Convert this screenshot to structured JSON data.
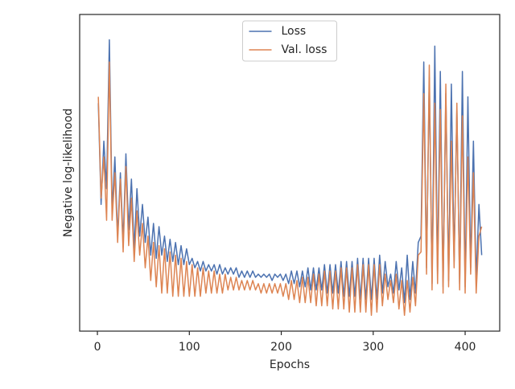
{
  "chart_data": {
    "type": "line",
    "xlabel": "Epochs",
    "ylabel": "Negative log-likelihood",
    "x": [
      1,
      4,
      7,
      10,
      13,
      16,
      19,
      22,
      25,
      28,
      31,
      34,
      37,
      40,
      43,
      46,
      49,
      52,
      55,
      58,
      61,
      64,
      67,
      70,
      73,
      76,
      79,
      82,
      85,
      88,
      91,
      94,
      97,
      100,
      103,
      106,
      109,
      112,
      115,
      118,
      121,
      124,
      127,
      130,
      133,
      136,
      139,
      142,
      145,
      148,
      151,
      154,
      157,
      160,
      163,
      166,
      169,
      172,
      175,
      178,
      181,
      184,
      187,
      190,
      193,
      196,
      199,
      202,
      205,
      208,
      211,
      214,
      217,
      220,
      223,
      226,
      229,
      232,
      235,
      238,
      241,
      244,
      247,
      250,
      253,
      256,
      259,
      262,
      265,
      268,
      271,
      274,
      277,
      280,
      283,
      286,
      289,
      292,
      295,
      298,
      301,
      304,
      307,
      310,
      313,
      316,
      319,
      322,
      325,
      328,
      331,
      334,
      337,
      340,
      343,
      346,
      349,
      352,
      355,
      358,
      361,
      364,
      367,
      370,
      373,
      376,
      379,
      382,
      385,
      388,
      391,
      394,
      397,
      400,
      403,
      406,
      409,
      412,
      415,
      418
    ],
    "series": [
      {
        "name": "Loss",
        "color": "#4c72b0",
        "values": [
          72,
          40,
          60,
          45,
          92,
          38,
          55,
          30,
          50,
          28,
          56,
          32,
          48,
          26,
          45,
          30,
          40,
          28,
          36,
          24,
          34,
          23,
          33,
          24,
          30,
          22,
          29,
          22,
          28,
          21,
          27,
          21,
          26,
          21,
          23,
          20,
          22,
          19,
          22,
          19,
          21,
          19,
          21,
          18,
          21,
          18,
          20,
          18,
          20,
          18,
          20,
          17,
          19,
          17,
          19,
          17,
          19,
          17,
          18,
          17,
          18,
          17,
          18,
          16,
          18,
          17,
          18,
          16,
          18,
          15,
          19,
          15,
          19,
          14,
          19,
          14,
          20,
          13,
          20,
          13,
          20,
          13,
          21,
          12,
          21,
          12,
          21,
          12,
          22,
          11,
          22,
          11,
          22,
          11,
          23,
          10,
          23,
          10,
          23,
          10,
          23,
          10,
          24,
          12,
          22,
          14,
          18,
          12,
          22,
          13,
          20,
          9,
          24,
          10,
          22,
          12,
          28,
          30,
          85,
          20,
          80,
          15,
          90,
          18,
          82,
          14,
          75,
          16,
          78,
          22,
          70,
          15,
          82,
          14,
          74,
          20,
          60,
          16,
          40,
          24
        ]
      },
      {
        "name": "Val. loss",
        "color": "#dd8452",
        "values": [
          74,
          42,
          55,
          35,
          85,
          35,
          50,
          28,
          48,
          25,
          52,
          27,
          42,
          22,
          38,
          24,
          34,
          20,
          30,
          16,
          28,
          14,
          27,
          12,
          26,
          12,
          25,
          11,
          24,
          11,
          23,
          11,
          22,
          11,
          21,
          11,
          20,
          11,
          20,
          12,
          19,
          12,
          19,
          12,
          18,
          12,
          18,
          13,
          17,
          13,
          17,
          13,
          16,
          13,
          16,
          13,
          16,
          13,
          15,
          12,
          15,
          12,
          15,
          12,
          15,
          12,
          15,
          11,
          15,
          10,
          16,
          10,
          16,
          9,
          17,
          9,
          17,
          9,
          18,
          8,
          18,
          8,
          19,
          8,
          19,
          7,
          19,
          7,
          20,
          7,
          20,
          6,
          20,
          6,
          21,
          6,
          21,
          6,
          21,
          5,
          21,
          6,
          21,
          8,
          18,
          10,
          16,
          9,
          18,
          7,
          16,
          5,
          16,
          6,
          17,
          8,
          24,
          25,
          75,
          18,
          84,
          13,
          72,
          15,
          70,
          12,
          78,
          14,
          60,
          20,
          72,
          13,
          68,
          12,
          55,
          18,
          50,
          12,
          30,
          33
        ]
      }
    ],
    "xlim": [
      -19.3,
      437.6
    ],
    "xticks": [
      0,
      100,
      200,
      300,
      400
    ],
    "ylim": [
      0,
      100
    ],
    "legend": "upper center"
  }
}
